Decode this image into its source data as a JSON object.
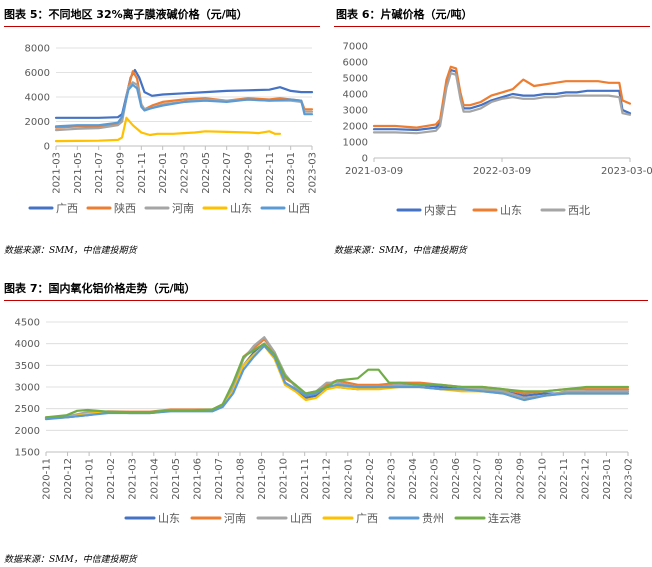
{
  "source_label": "数据来源：SMM，中信建投期货",
  "chart_data": [
    {
      "type": "line",
      "title": "图表 5：不同地区 32%离子膜液碱价格（元/吨）",
      "source": "数据来源：SMM，中信建投期货",
      "ylim": [
        0,
        8000
      ],
      "yticks": [
        "0",
        "2000",
        "4000",
        "6000",
        "8000"
      ],
      "xtick_labels": [
        "2021-03",
        "2021-05",
        "2021-07",
        "2021-09",
        "2021-11",
        "2022-01",
        "2022-03",
        "2022-05",
        "2022-07",
        "2022-09",
        "2022-11",
        "2023-01",
        "2023-03"
      ],
      "x_range": [
        0,
        24
      ],
      "series": [
        {
          "name": "广西",
          "color": "#4472C4",
          "x": [
            0,
            2,
            4,
            5.8,
            6.2,
            7,
            7.4,
            7.8,
            8.3,
            9,
            10,
            12,
            14,
            16,
            18,
            20,
            21,
            22,
            23,
            24
          ],
          "values": [
            2300,
            2300,
            2300,
            2350,
            2600,
            5600,
            6200,
            5600,
            4400,
            4100,
            4200,
            4300,
            4400,
            4500,
            4550,
            4600,
            4800,
            4500,
            4400,
            4400
          ]
        },
        {
          "name": "陕西",
          "color": "#ED7D31",
          "x": [
            0,
            2,
            4,
            5.8,
            6.2,
            6.8,
            7.2,
            7.6,
            8,
            8.3,
            9,
            10,
            12,
            14,
            16,
            18,
            20,
            21,
            22,
            23,
            23.3,
            24
          ],
          "values": [
            1500,
            1600,
            1600,
            1800,
            2200,
            4800,
            6100,
            5500,
            3400,
            3000,
            3300,
            3600,
            3800,
            3900,
            3700,
            3900,
            3800,
            3900,
            3800,
            3700,
            3000,
            3000
          ]
        },
        {
          "name": "河南",
          "color": "#A5A5A5",
          "x": [
            0,
            2,
            4,
            5.8,
            6.2,
            6.8,
            7.2,
            7.6,
            8,
            8.3,
            9,
            10,
            12,
            14,
            16,
            18,
            20,
            22,
            23,
            23.3,
            24
          ],
          "values": [
            1300,
            1400,
            1450,
            1700,
            2000,
            4800,
            5200,
            5000,
            3400,
            3000,
            3100,
            3400,
            3600,
            3800,
            3700,
            3800,
            3700,
            3700,
            3600,
            2800,
            2800
          ]
        },
        {
          "name": "山东",
          "color": "#FFC000",
          "x": [
            0,
            2,
            4,
            5.8,
            6.2,
            6.6,
            7.2,
            8,
            8.8,
            9.5,
            10,
            11,
            12,
            13,
            14,
            16,
            18,
            19,
            20,
            20.5,
            21
          ],
          "values": [
            400,
            420,
            430,
            500,
            700,
            2300,
            1700,
            1100,
            900,
            1000,
            1000,
            1000,
            1050,
            1100,
            1200,
            1150,
            1100,
            1050,
            1200,
            1000,
            1000
          ]
        },
        {
          "name": "山西",
          "color": "#5B9BD5",
          "x": [
            0,
            2,
            4,
            5.8,
            6.2,
            6.8,
            7.2,
            7.6,
            8,
            8.3,
            9,
            10,
            12,
            14,
            16,
            18,
            20,
            22,
            23,
            23.3,
            24
          ],
          "values": [
            1600,
            1700,
            1700,
            1900,
            2400,
            4600,
            5000,
            4700,
            3200,
            2900,
            3100,
            3300,
            3600,
            3700,
            3600,
            3800,
            3700,
            3800,
            3700,
            2600,
            2600
          ]
        }
      ]
    },
    {
      "type": "line",
      "title": "图表 6：片碱价格（元/吨）",
      "source": "数据来源：SMM，中信建投期货",
      "ylim": [
        0,
        7000
      ],
      "yticks": [
        "0",
        "1000",
        "2000",
        "3000",
        "4000",
        "5000",
        "6000",
        "7000"
      ],
      "xtick_labels": [
        "2021-03-09",
        "2022-03-09",
        "2023-03-09"
      ],
      "x_range": [
        0,
        24
      ],
      "series": [
        {
          "name": "内蒙古",
          "color": "#4472C4",
          "x": [
            0,
            2,
            4,
            5.8,
            6.2,
            6.8,
            7.2,
            7.7,
            8.1,
            8.4,
            9,
            10,
            11,
            12,
            13,
            14,
            15,
            16,
            17,
            18,
            19,
            20,
            21,
            22,
            23,
            23.3,
            24
          ],
          "values": [
            1800,
            1800,
            1750,
            1900,
            2200,
            4600,
            5500,
            5400,
            3900,
            3100,
            3100,
            3300,
            3600,
            3800,
            4000,
            3900,
            3900,
            4000,
            4000,
            4100,
            4100,
            4200,
            4200,
            4200,
            4200,
            3000,
            2800
          ]
        },
        {
          "name": "山东",
          "color": "#ED7D31",
          "x": [
            0,
            2,
            4,
            5.8,
            6.2,
            6.8,
            7.2,
            7.7,
            8.1,
            8.4,
            9,
            10,
            11,
            12,
            13,
            14,
            15,
            16,
            17,
            18,
            19,
            20,
            21,
            22,
            23,
            23.3,
            24
          ],
          "values": [
            2000,
            2000,
            1900,
            2100,
            2400,
            4900,
            5700,
            5600,
            4100,
            3300,
            3300,
            3500,
            3900,
            4100,
            4300,
            4900,
            4500,
            4600,
            4700,
            4800,
            4800,
            4800,
            4800,
            4700,
            4700,
            3600,
            3400
          ]
        },
        {
          "name": "西北",
          "color": "#A5A5A5",
          "x": [
            0,
            2,
            4,
            5.8,
            6.2,
            6.8,
            7.2,
            7.7,
            8.1,
            8.4,
            9,
            10,
            11,
            12,
            13,
            14,
            15,
            16,
            17,
            18,
            19,
            20,
            21,
            22,
            23,
            23.3,
            24
          ],
          "values": [
            1600,
            1600,
            1550,
            1700,
            2000,
            4400,
            5300,
            5200,
            3700,
            2900,
            2900,
            3100,
            3500,
            3700,
            3800,
            3700,
            3700,
            3800,
            3800,
            3900,
            3900,
            3900,
            3900,
            3900,
            3800,
            2800,
            2700
          ]
        }
      ]
    },
    {
      "type": "line",
      "title": "图表 7：国内氧化铝价格走势（元/吨）",
      "source": "数据来源：SMM，中信建投期货",
      "ylim": [
        1500,
        4500
      ],
      "yticks": [
        "1500",
        "2000",
        "2500",
        "3000",
        "3500",
        "4000",
        "4500"
      ],
      "xtick_labels": [
        "2020-11",
        "2020-12",
        "2021-01",
        "2021-02",
        "2021-03",
        "2021-04",
        "2021-05",
        "2021-06",
        "2021-07",
        "2021-08",
        "2021-09",
        "2021-10",
        "2021-11",
        "2021-12",
        "2022-01",
        "2022-02",
        "2022-03",
        "2022-04",
        "2022-05",
        "2022-06",
        "2022-07",
        "2022-08",
        "2022-09",
        "2022-10",
        "2022-11",
        "2022-12",
        "2023-01",
        "2023-02"
      ],
      "x_range": [
        0,
        28
      ],
      "series": [
        {
          "name": "山东",
          "color": "#4472C4",
          "x": [
            0,
            1,
            2,
            3,
            4,
            5,
            6,
            7,
            8,
            8.5,
            9,
            9.5,
            10,
            10.5,
            11,
            11.5,
            12,
            12.5,
            13,
            13.5,
            14,
            15,
            16,
            17,
            18,
            19,
            20,
            21,
            22,
            23,
            24,
            25,
            26,
            27,
            28
          ],
          "values": [
            2280,
            2300,
            2350,
            2420,
            2400,
            2400,
            2450,
            2450,
            2450,
            2550,
            2900,
            3500,
            3800,
            4000,
            3700,
            3100,
            2950,
            2750,
            2800,
            3000,
            3000,
            2950,
            3000,
            3050,
            3050,
            3000,
            2950,
            2900,
            2900,
            2800,
            2850,
            2850,
            2900,
            2900,
            2900
          ]
        },
        {
          "name": "河南",
          "color": "#ED7D31",
          "x": [
            0,
            1,
            2,
            3,
            4,
            5,
            6,
            7,
            8,
            8.5,
            9,
            9.5,
            10,
            10.5,
            11,
            11.5,
            12,
            12.5,
            13,
            13.5,
            14,
            15,
            16,
            17,
            18,
            19,
            20,
            21,
            22,
            23,
            24,
            25,
            26,
            27,
            28
          ],
          "values": [
            2300,
            2320,
            2400,
            2440,
            2430,
            2430,
            2480,
            2480,
            2480,
            2600,
            3050,
            3700,
            3900,
            4100,
            3800,
            3200,
            3050,
            2800,
            2850,
            3050,
            3150,
            3050,
            3050,
            3100,
            3100,
            3050,
            3000,
            3000,
            2950,
            2850,
            2900,
            2950,
            2950,
            2950,
            2950
          ]
        },
        {
          "name": "山西",
          "color": "#A5A5A5",
          "x": [
            0,
            1,
            2,
            3,
            4,
            5,
            6,
            7,
            8,
            8.5,
            9,
            9.5,
            10,
            10.5,
            11,
            11.5,
            12,
            12.5,
            13,
            13.5,
            14,
            15,
            16,
            17,
            18,
            19,
            20,
            21,
            22,
            23,
            24,
            25,
            26,
            27,
            28
          ],
          "values": [
            2290,
            2320,
            2420,
            2430,
            2420,
            2420,
            2470,
            2470,
            2470,
            2580,
            3000,
            3650,
            3950,
            4150,
            3800,
            3300,
            3000,
            2850,
            2900,
            3100,
            3100,
            3000,
            3000,
            3050,
            3000,
            2950,
            2950,
            2950,
            2900,
            2750,
            2800,
            2900,
            2900,
            2900,
            2900
          ]
        },
        {
          "name": "广西",
          "color": "#FFC000",
          "x": [
            0,
            1,
            2,
            3,
            4,
            5,
            6,
            7,
            8,
            8.5,
            9,
            9.5,
            10,
            10.5,
            11,
            11.5,
            12,
            12.5,
            13,
            13.5,
            14,
            15,
            16,
            17,
            18,
            19,
            20,
            21,
            22,
            23,
            24,
            25,
            26,
            27,
            28
          ],
          "values": [
            2270,
            2300,
            2380,
            2420,
            2410,
            2410,
            2460,
            2460,
            2460,
            2560,
            2900,
            3500,
            3750,
            3950,
            3650,
            3050,
            2900,
            2700,
            2750,
            2950,
            3000,
            2950,
            2950,
            3000,
            3000,
            2950,
            2900,
            2900,
            2850,
            2700,
            2800,
            2850,
            2850,
            2850,
            2850
          ]
        },
        {
          "name": "贵州",
          "color": "#5B9BD5",
          "x": [
            0,
            1,
            2,
            3,
            4,
            5,
            6,
            7,
            8,
            8.5,
            9,
            9.5,
            10,
            10.5,
            11,
            11.5,
            12,
            12.5,
            13,
            13.5,
            14,
            15,
            16,
            17,
            18,
            19,
            20,
            21,
            22,
            23,
            24,
            25,
            26,
            27,
            28
          ],
          "values": [
            2260,
            2300,
            2350,
            2400,
            2400,
            2400,
            2440,
            2440,
            2440,
            2540,
            2850,
            3400,
            3700,
            3950,
            3700,
            3100,
            2950,
            2800,
            2850,
            3000,
            3050,
            3000,
            3000,
            3000,
            3000,
            2950,
            2950,
            2900,
            2850,
            2700,
            2800,
            2850,
            2850,
            2850,
            2850
          ]
        },
        {
          "name": "连云港",
          "color": "#70AD47",
          "x": [
            0,
            1,
            1.5,
            2,
            3,
            4,
            5,
            6,
            7,
            8,
            8.5,
            9,
            9.5,
            10,
            10.5,
            11,
            11.5,
            12,
            12.5,
            13,
            13.5,
            14,
            15,
            15.5,
            16,
            16.5,
            17,
            18,
            19,
            20,
            21,
            22,
            23,
            24,
            25,
            26,
            27,
            28
          ],
          "values": [
            2300,
            2350,
            2450,
            2470,
            2430,
            2420,
            2420,
            2460,
            2460,
            2480,
            2600,
            3100,
            3700,
            3850,
            4000,
            3750,
            3250,
            3050,
            2850,
            2900,
            3000,
            3150,
            3200,
            3400,
            3400,
            3100,
            3100,
            3050,
            3050,
            3000,
            3000,
            2950,
            2900,
            2900,
            2950,
            3000,
            3000,
            3000
          ]
        }
      ]
    }
  ]
}
